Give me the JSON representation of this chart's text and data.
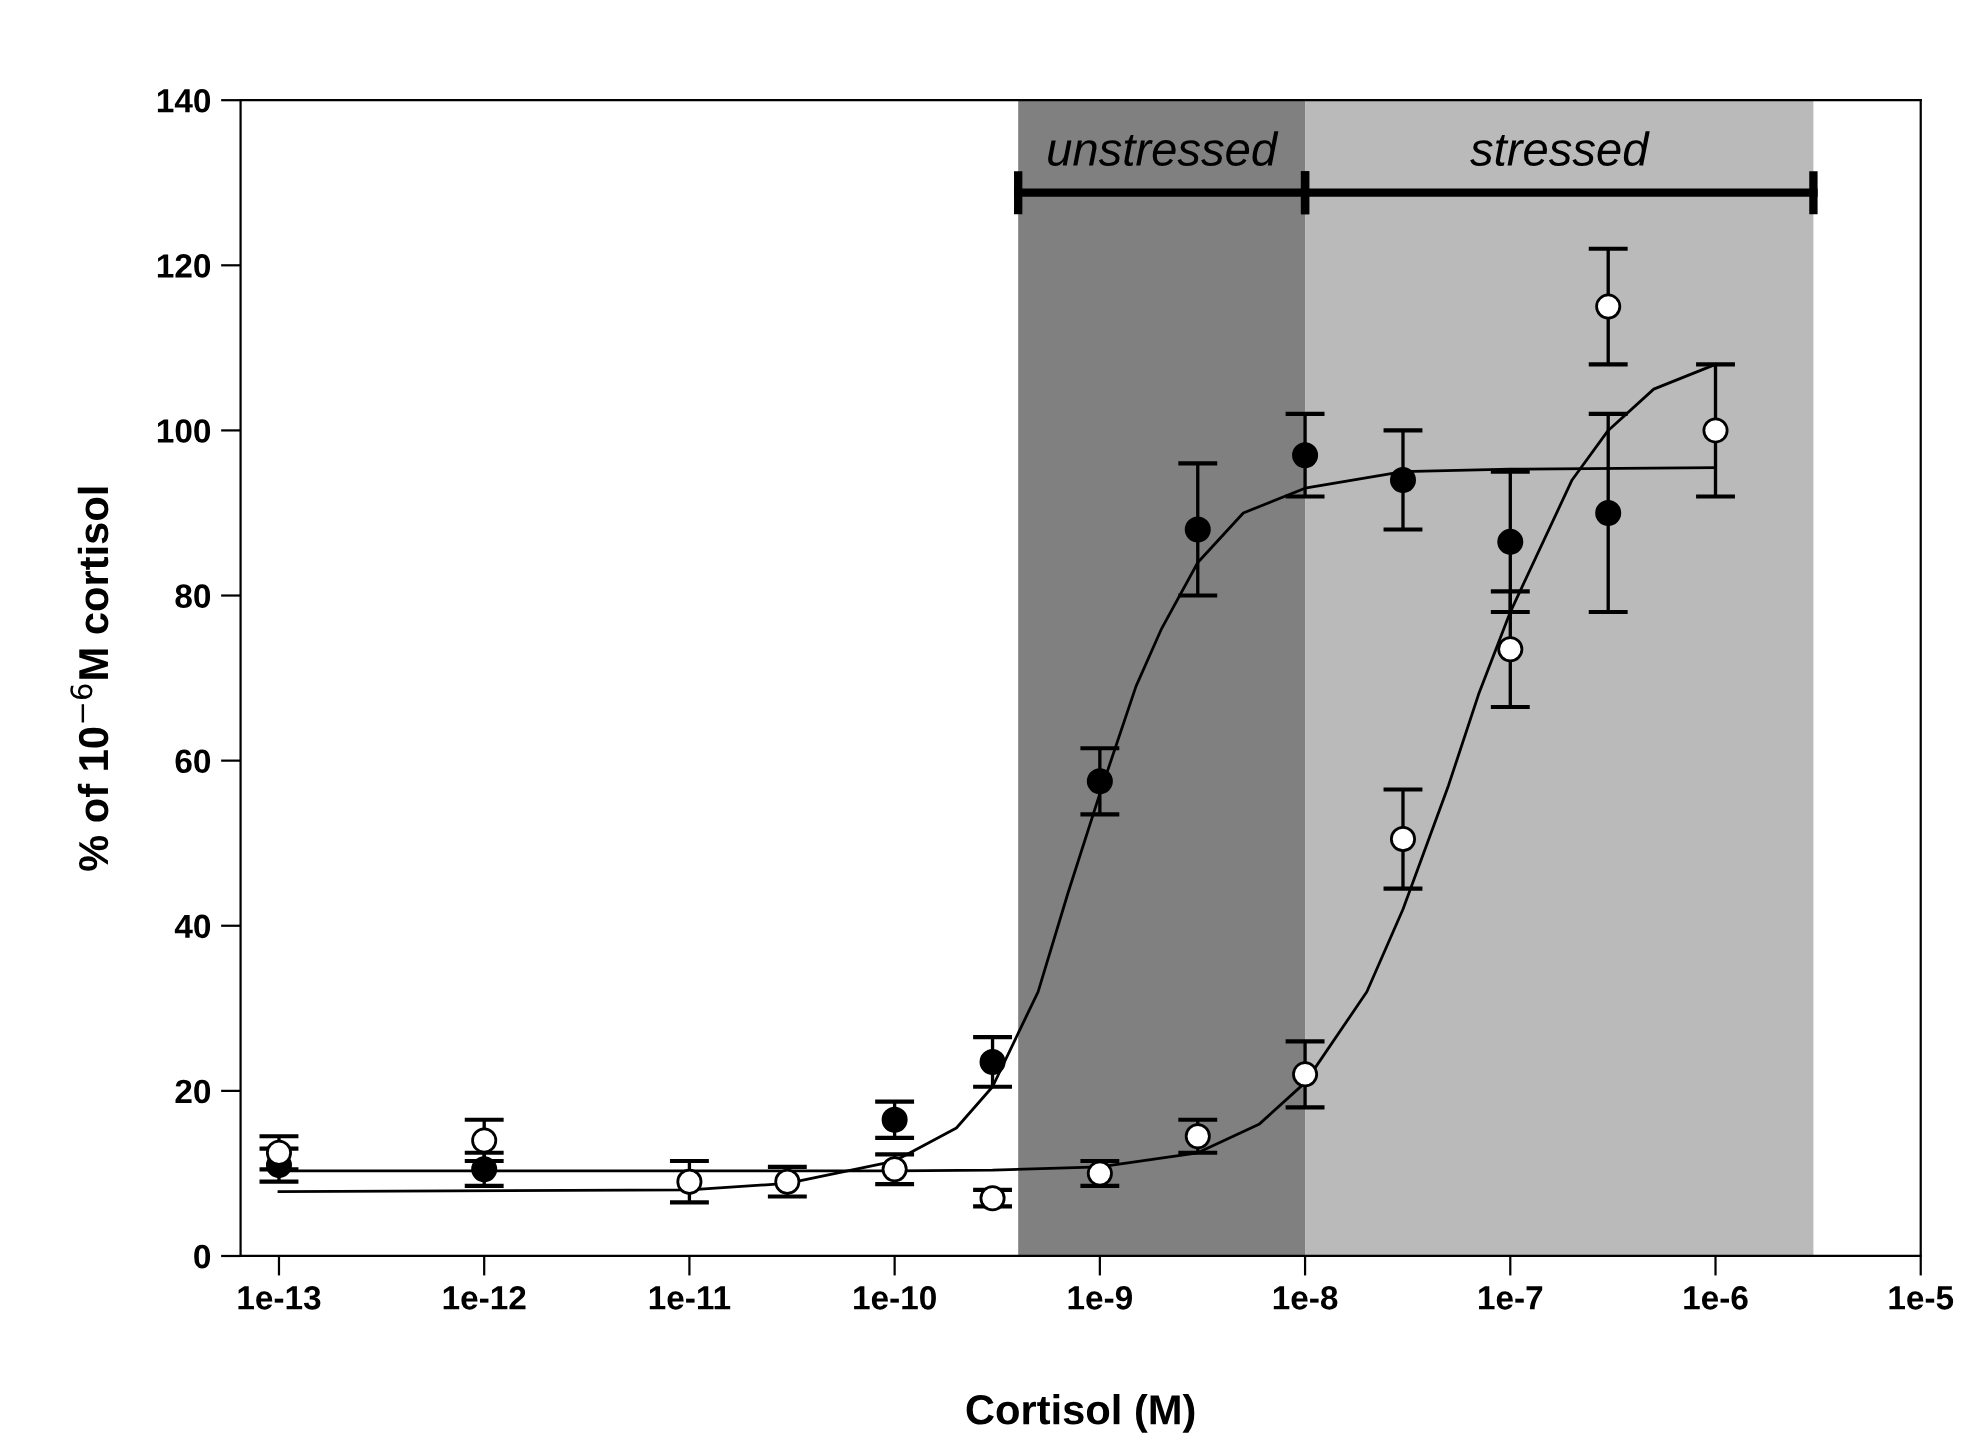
{
  "chart_data": {
    "type": "scatter",
    "xlabel": "Cortisol (M)",
    "ylabel": "% of 10$^{−6}$M cortisol",
    "log": "x",
    "xlim": [
      6.5e-14,
      1e-05
    ],
    "ylim": [
      0,
      140
    ],
    "xticks": [
      {
        "value": 1e-13,
        "label": "1e-13"
      },
      {
        "value": 1e-12,
        "label": "1e-12"
      },
      {
        "value": 1e-11,
        "label": "1e-11"
      },
      {
        "value": 1e-10,
        "label": "1e-10"
      },
      {
        "value": 1e-09,
        "label": "1e-9"
      },
      {
        "value": 1e-08,
        "label": "1e-8"
      },
      {
        "value": 1e-07,
        "label": "1e-7"
      },
      {
        "value": 1e-06,
        "label": "1e-6"
      },
      {
        "value": 1e-05,
        "label": "1e-5"
      }
    ],
    "yticks": [
      0,
      20,
      40,
      60,
      80,
      100,
      120,
      140
    ],
    "grid": false,
    "bands": [
      {
        "axis": "x",
        "from": 4e-10,
        "to": 1e-08,
        "label": "unstressed",
        "color": "#808080"
      },
      {
        "axis": "x",
        "from": 1e-08,
        "to": 3e-06,
        "label": "stressed",
        "color": "#bababa"
      }
    ],
    "series": [
      {
        "marker": "circle",
        "color": "#000000",
        "x": [
          1e-13,
          1e-12,
          1e-11,
          1e-10,
          3e-10,
          1e-09,
          3e-09,
          1e-08,
          3e-08,
          1e-07,
          3e-07
        ],
        "values": [
          11,
          10.5,
          null,
          16.5,
          23.5,
          57.5,
          88,
          97,
          94,
          86.5,
          90
        ],
        "errors": [
          2,
          2,
          null,
          2.2,
          3,
          4,
          8,
          5,
          6,
          8.5,
          12
        ]
      },
      {
        "marker": "circle",
        "color": "#ffffff",
        "x": [
          1e-13,
          1e-12,
          1e-11,
          3e-11,
          1e-10,
          3e-10,
          1e-09,
          3e-09,
          1e-08,
          3e-08,
          1e-07,
          3e-07,
          1e-06
        ],
        "values": [
          12.5,
          14,
          9,
          9,
          10.5,
          7,
          10,
          14.5,
          22,
          50.5,
          73.5,
          115,
          100
        ],
        "errors": [
          2,
          2.5,
          2.5,
          1.8,
          1.8,
          1,
          1.5,
          2,
          4,
          6,
          7,
          7,
          8
        ]
      },
      {
        "type": "line",
        "color": "#000000",
        "x": [
          1e-13,
          1e-11,
          3e-11,
          1e-10,
          2e-10,
          3e-10,
          5e-10,
          7e-10,
          1e-09,
          1.5e-09,
          2e-09,
          3e-09,
          5e-09,
          1e-08,
          3e-08,
          1e-07,
          1e-06
        ],
        "values": [
          7.8,
          8.0,
          8.8,
          11.5,
          15.5,
          20.5,
          32,
          44,
          56,
          69,
          76,
          84,
          90,
          93,
          95,
          95.3,
          95.5
        ]
      },
      {
        "type": "line",
        "color": "#000000",
        "x": [
          1e-13,
          1e-10,
          3e-10,
          1e-09,
          3e-09,
          6e-09,
          1e-08,
          2e-08,
          3e-08,
          5e-08,
          7e-08,
          1e-07,
          2e-07,
          3e-07,
          5e-07,
          1e-06
        ],
        "values": [
          10.3,
          10.3,
          10.4,
          10.8,
          12.5,
          16,
          21,
          32,
          42,
          57,
          68,
          78,
          94,
          100,
          105,
          108
        ]
      }
    ]
  }
}
